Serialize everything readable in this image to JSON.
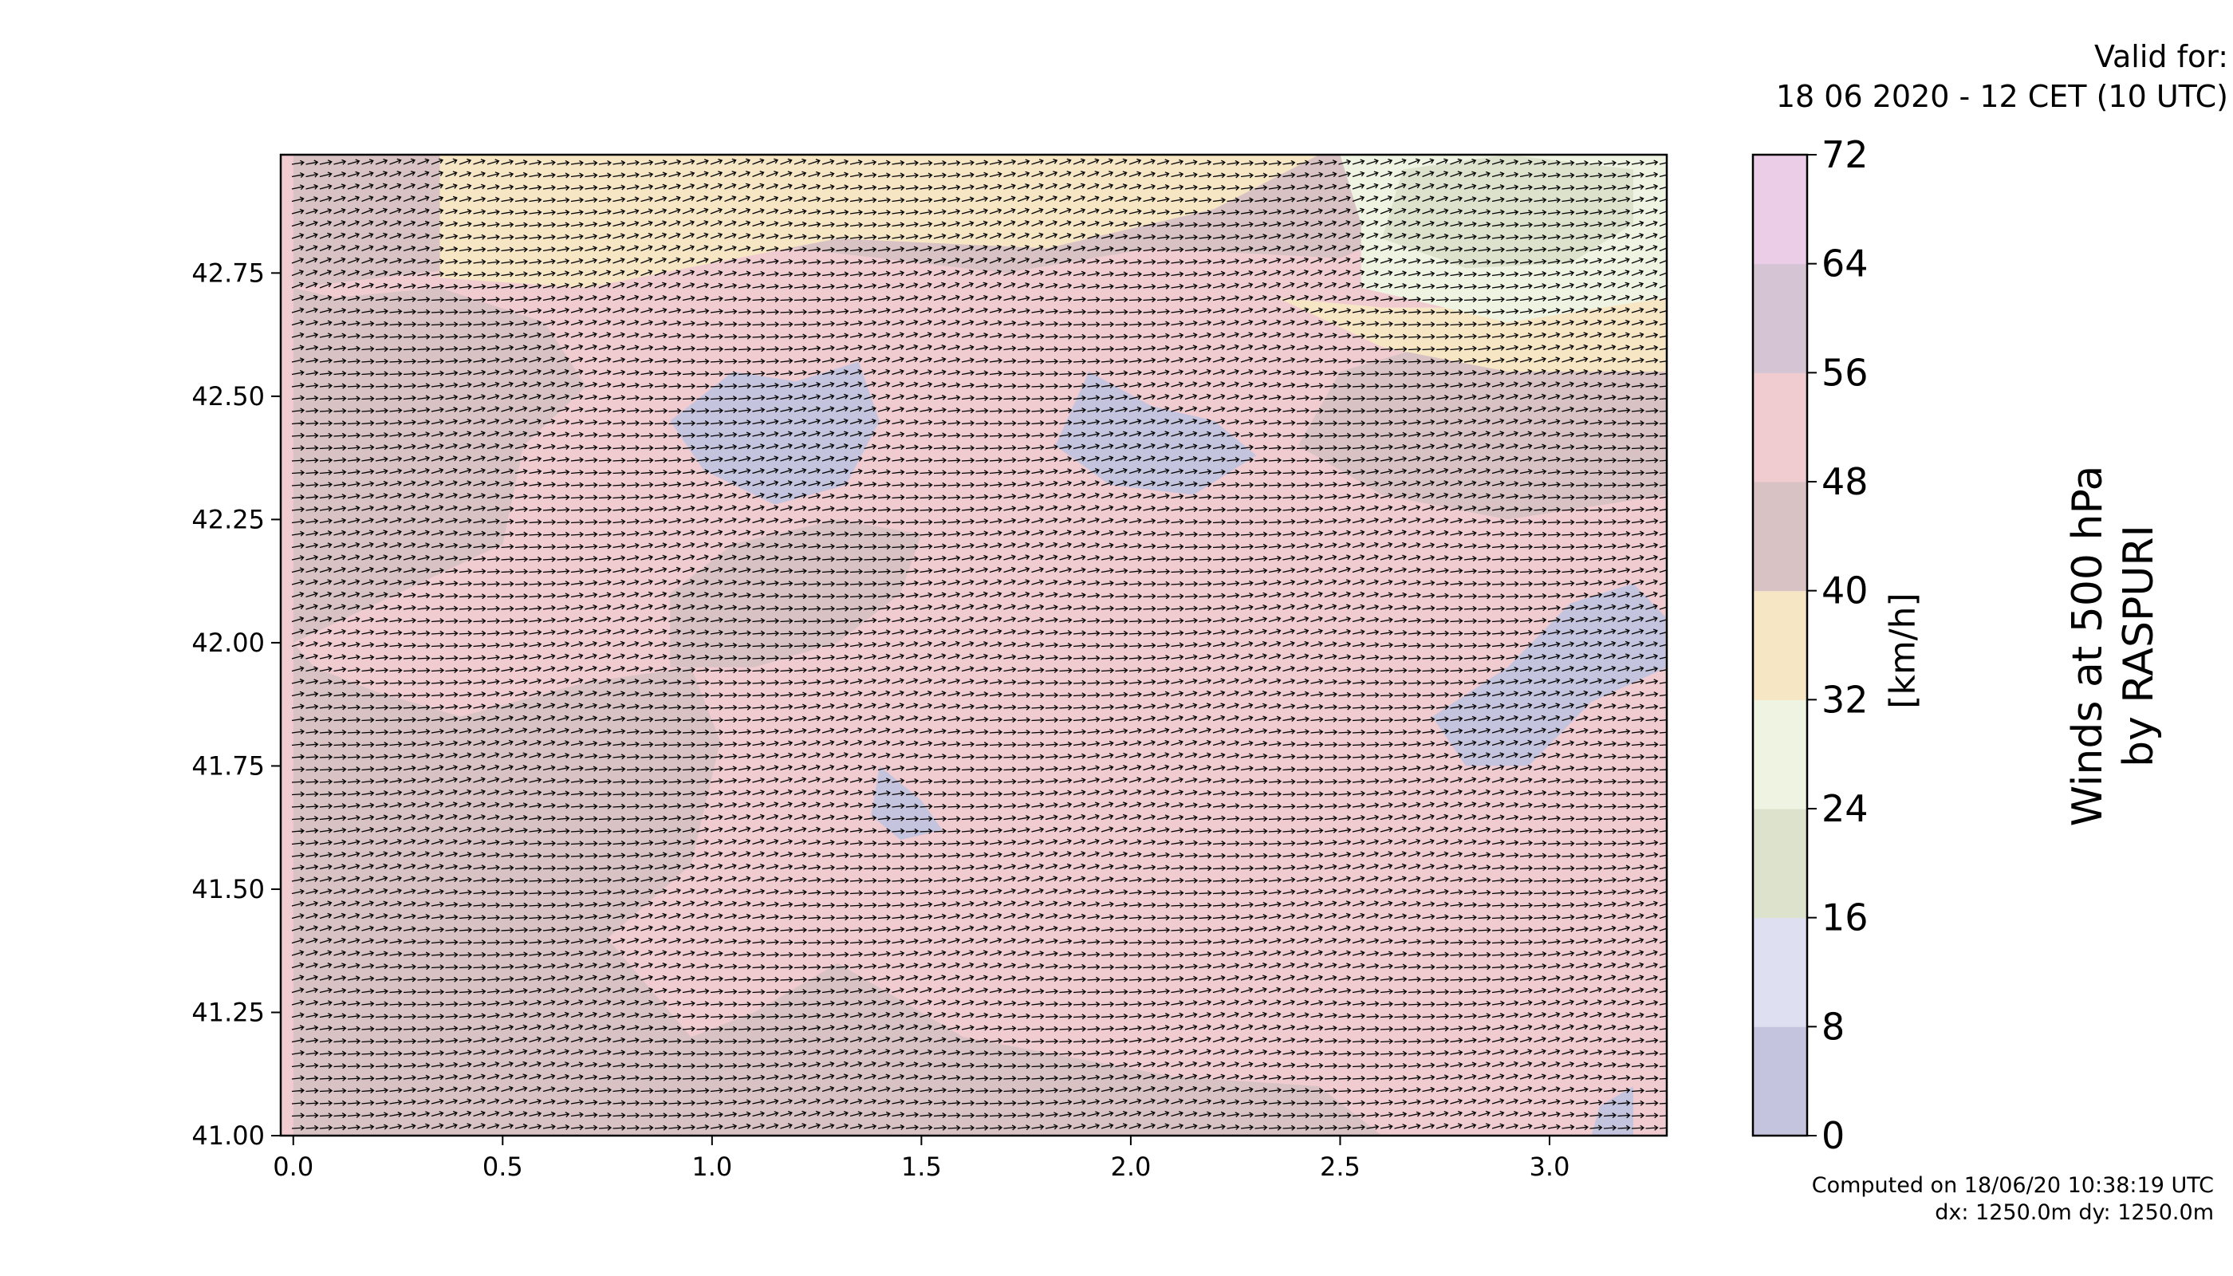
{
  "header": {
    "valid_line1": "Valid for:",
    "valid_line2": "18 06 2020 - 12 CET (10 UTC)"
  },
  "title": {
    "line1": "Winds at 500 hPa",
    "line2": "by RASPURI"
  },
  "footer": {
    "computed": "Computed on 18/06/20 10:38:19 UTC",
    "resolution": "dx: 1250.0m dy: 1250.0m"
  },
  "colorbar": {
    "unit": "[km/h]",
    "levels": [
      0,
      8,
      16,
      24,
      32,
      40,
      48,
      56,
      64,
      72
    ],
    "tick_labels": [
      "0",
      "8",
      "16",
      "24",
      "32",
      "40",
      "48",
      "56",
      "64",
      "72"
    ],
    "colors": [
      "#c5c4de",
      "#dedff0",
      "#dde2cc",
      "#eff3e2",
      "#f6e6c4",
      "#d8c2c4",
      "#f0cbd0",
      "#d5c4d3",
      "#eccde7"
    ]
  },
  "chart_data": {
    "type": "heatmap",
    "title": "Winds at 500 hPa",
    "xlabel": "",
    "ylabel": "",
    "xlim": [
      -0.03,
      3.28
    ],
    "ylim": [
      41.0,
      42.99
    ],
    "x_ticks": [
      0.0,
      0.5,
      1.0,
      1.5,
      2.0,
      2.5,
      3.0
    ],
    "x_tick_labels": [
      "0.0",
      "0.5",
      "1.0",
      "1.5",
      "2.0",
      "2.5",
      "3.0"
    ],
    "y_ticks": [
      41.0,
      41.25,
      41.5,
      41.75,
      42.0,
      42.25,
      42.5,
      42.75
    ],
    "y_tick_labels": [
      "41.00",
      "41.25",
      "41.50",
      "41.75",
      "42.00",
      "42.25",
      "42.50",
      "42.75"
    ],
    "background_band": "48-56",
    "regions": [
      {
        "band": "40-48",
        "outline": [
          [
            0.0,
            41.0
          ],
          [
            2.6,
            41.0
          ],
          [
            2.45,
            41.1
          ],
          [
            2.1,
            41.12
          ],
          [
            1.6,
            41.2
          ],
          [
            1.3,
            41.35
          ],
          [
            1.1,
            41.25
          ],
          [
            0.95,
            41.2
          ],
          [
            0.75,
            41.4
          ],
          [
            0.95,
            41.55
          ],
          [
            1.02,
            41.8
          ],
          [
            0.95,
            41.95
          ],
          [
            0.7,
            41.92
          ],
          [
            0.4,
            41.85
          ],
          [
            0.2,
            41.9
          ],
          [
            0.05,
            41.95
          ],
          [
            0.0,
            42.0
          ]
        ]
      },
      {
        "band": "40-48",
        "outline": [
          [
            0.0,
            42.0
          ],
          [
            0.25,
            42.1
          ],
          [
            0.5,
            42.2
          ],
          [
            0.55,
            42.4
          ],
          [
            0.7,
            42.52
          ],
          [
            0.6,
            42.65
          ],
          [
            0.35,
            42.72
          ],
          [
            0.1,
            42.7
          ],
          [
            0.0,
            42.72
          ]
        ]
      },
      {
        "band": "40-48",
        "outline": [
          [
            0.9,
            41.95
          ],
          [
            1.1,
            41.95
          ],
          [
            1.3,
            42.0
          ],
          [
            1.45,
            42.1
          ],
          [
            1.5,
            42.22
          ],
          [
            1.3,
            42.25
          ],
          [
            1.05,
            42.2
          ],
          [
            0.9,
            42.1
          ]
        ]
      },
      {
        "band": "40-48",
        "outline": [
          [
            2.4,
            42.4
          ],
          [
            2.6,
            42.3
          ],
          [
            2.9,
            42.25
          ],
          [
            3.28,
            42.3
          ],
          [
            3.28,
            42.6
          ],
          [
            3.0,
            42.55
          ],
          [
            2.7,
            42.6
          ],
          [
            2.5,
            42.55
          ]
        ]
      },
      {
        "band": "40-48",
        "outline": [
          [
            0.0,
            42.72
          ],
          [
            0.3,
            42.75
          ],
          [
            0.7,
            42.78
          ],
          [
            1.2,
            42.8
          ],
          [
            1.7,
            42.75
          ],
          [
            2.05,
            42.8
          ],
          [
            2.5,
            42.78
          ],
          [
            2.7,
            42.85
          ],
          [
            2.6,
            42.99
          ],
          [
            0.0,
            42.99
          ]
        ]
      },
      {
        "band": "32-40",
        "outline": [
          [
            0.35,
            42.74
          ],
          [
            0.7,
            42.72
          ],
          [
            1.0,
            42.77
          ],
          [
            1.3,
            42.82
          ],
          [
            1.8,
            42.8
          ],
          [
            2.2,
            42.88
          ],
          [
            2.45,
            42.99
          ],
          [
            0.35,
            42.99
          ]
        ]
      },
      {
        "band": "32-40",
        "outline": [
          [
            2.35,
            42.7
          ],
          [
            2.6,
            42.6
          ],
          [
            2.9,
            42.55
          ],
          [
            3.28,
            42.55
          ],
          [
            3.28,
            42.72
          ],
          [
            3.0,
            42.68
          ],
          [
            2.6,
            42.68
          ]
        ]
      },
      {
        "band": "24-32",
        "outline": [
          [
            2.55,
            42.72
          ],
          [
            2.9,
            42.65
          ],
          [
            3.28,
            42.7
          ],
          [
            3.28,
            42.99
          ],
          [
            2.5,
            42.99
          ],
          [
            2.55,
            42.85
          ]
        ]
      },
      {
        "band": "16-24",
        "outline": [
          [
            2.6,
            42.82
          ],
          [
            2.8,
            42.76
          ],
          [
            3.05,
            42.77
          ],
          [
            3.2,
            42.85
          ],
          [
            3.2,
            42.96
          ],
          [
            2.9,
            42.99
          ],
          [
            2.65,
            42.96
          ]
        ]
      },
      {
        "band": "0-8",
        "outline": [
          [
            0.9,
            42.45
          ],
          [
            1.05,
            42.55
          ],
          [
            1.2,
            42.53
          ],
          [
            1.35,
            42.57
          ],
          [
            1.4,
            42.45
          ],
          [
            1.32,
            42.32
          ],
          [
            1.15,
            42.28
          ],
          [
            0.98,
            42.35
          ]
        ]
      },
      {
        "band": "0-8",
        "outline": [
          [
            1.82,
            42.4
          ],
          [
            1.9,
            42.55
          ],
          [
            2.05,
            42.48
          ],
          [
            2.2,
            42.45
          ],
          [
            2.3,
            42.38
          ],
          [
            2.15,
            42.3
          ],
          [
            1.95,
            42.32
          ]
        ]
      },
      {
        "band": "0-8",
        "outline": [
          [
            2.72,
            41.85
          ],
          [
            2.9,
            41.95
          ],
          [
            3.05,
            42.08
          ],
          [
            3.2,
            42.12
          ],
          [
            3.28,
            42.05
          ],
          [
            3.28,
            41.95
          ],
          [
            3.1,
            41.88
          ],
          [
            2.95,
            41.75
          ],
          [
            2.8,
            41.75
          ]
        ]
      },
      {
        "band": "0-8",
        "outline": [
          [
            1.4,
            41.75
          ],
          [
            1.5,
            41.68
          ],
          [
            1.55,
            41.62
          ],
          [
            1.45,
            41.6
          ],
          [
            1.38,
            41.65
          ]
        ]
      },
      {
        "band": "0-8",
        "outline": [
          [
            3.1,
            41.0
          ],
          [
            3.2,
            41.0
          ],
          [
            3.2,
            41.1
          ],
          [
            3.12,
            41.06
          ]
        ]
      }
    ],
    "wind_vectors": {
      "direction": "from west",
      "density": "dense regular grid"
    }
  }
}
